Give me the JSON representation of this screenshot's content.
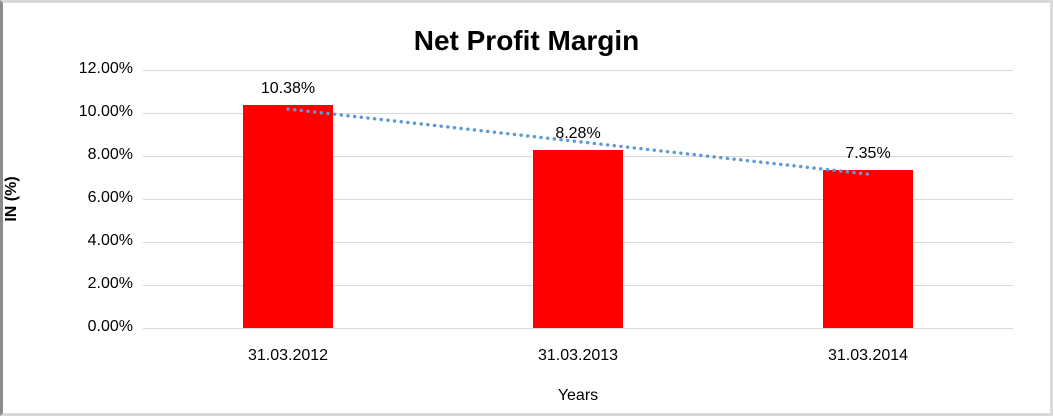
{
  "chart_data": {
    "type": "bar",
    "title": "Net Profit Margin",
    "categories": [
      "31.03.2012",
      "31.03.2013",
      "31.03.2014"
    ],
    "values": [
      10.38,
      8.28,
      7.35
    ],
    "data_labels": [
      "10.38%",
      "8.28%",
      "7.35%"
    ],
    "xlabel": "Years",
    "ylabel": "IN (%)",
    "ylim": [
      0,
      12
    ],
    "ytick_values": [
      0,
      2,
      4,
      6,
      8,
      10,
      12
    ],
    "ytick_labels": [
      "0.00%",
      "2.00%",
      "4.00%",
      "6.00%",
      "8.00%",
      "10.00%",
      "12.00%"
    ],
    "grid": true,
    "legend_position": "none",
    "bar_color": "#ff0000",
    "gridline_color": "#d9d9d9",
    "text_color": "#000000",
    "trendline": {
      "type": "linear",
      "style": "dotted",
      "color": "#5b9bd5"
    }
  }
}
